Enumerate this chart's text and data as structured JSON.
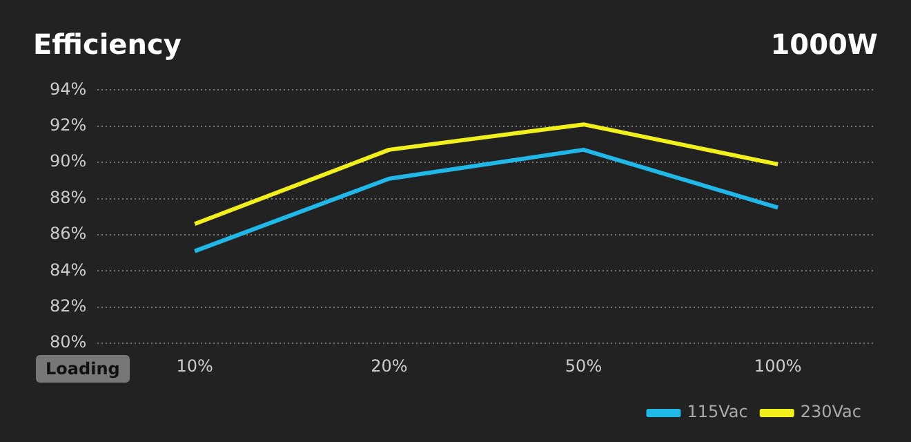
{
  "chart_data": {
    "type": "line",
    "title": "Efficiency",
    "subtitle": "1000W",
    "xlabel": "Loading",
    "categories": [
      "10%",
      "20%",
      "50%",
      "100%"
    ],
    "series": [
      {
        "name": "115Vac",
        "color": "#1fb8e8",
        "values": [
          85.1,
          89.1,
          90.7,
          87.5
        ]
      },
      {
        "name": "230Vac",
        "color": "#f2f01a",
        "values": [
          86.6,
          90.7,
          92.1,
          89.9
        ]
      }
    ],
    "ylim": [
      80,
      94
    ],
    "yticks": [
      {
        "value": 80,
        "label": "80%"
      },
      {
        "value": 82,
        "label": "82%"
      },
      {
        "value": 84,
        "label": "84%"
      },
      {
        "value": 86,
        "label": "86%"
      },
      {
        "value": 88,
        "label": "88%"
      },
      {
        "value": 90,
        "label": "90%"
      },
      {
        "value": 92,
        "label": "92%"
      },
      {
        "value": 94,
        "label": "94%"
      }
    ],
    "grid": "y",
    "legend": "bottom right",
    "marker": "none",
    "line_style": "solid"
  }
}
